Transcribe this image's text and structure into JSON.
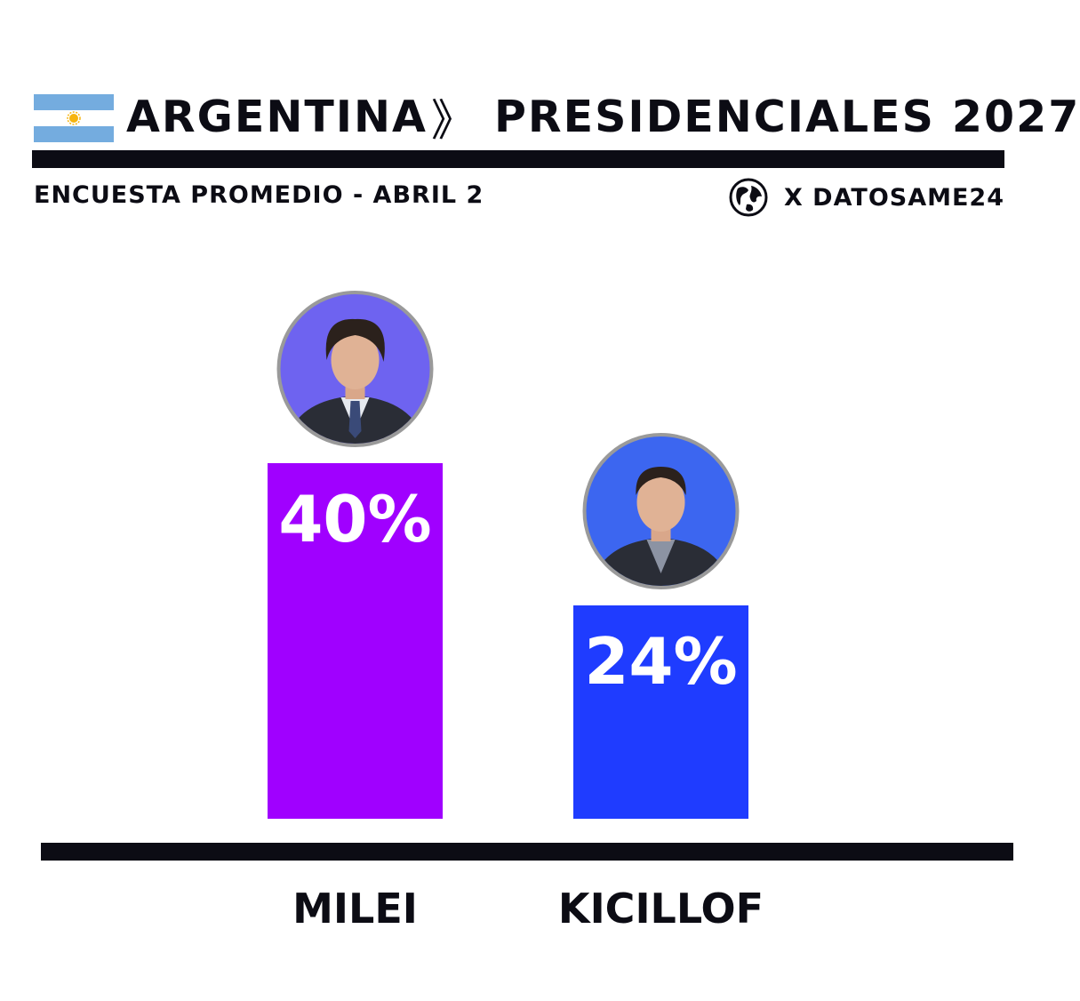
{
  "header": {
    "country": "ARGENTINA",
    "separator": "》",
    "title": "PRESIDENCIALES 2027",
    "subtitle": "ENCUESTA PROMEDIO - ABRIL 2",
    "source": "X DATOSAME24"
  },
  "colors": {
    "ink": "#0c0c14",
    "flag_blue": "#74acdf",
    "flag_sun": "#f6b40e"
  },
  "chart_data": {
    "type": "bar",
    "categories": [
      "MILEI",
      "KICILLOF"
    ],
    "values": [
      40,
      24
    ],
    "value_labels": [
      "40%",
      "24%"
    ],
    "colors": [
      "#a000ff",
      "#1f3cff"
    ],
    "avatar_backgrounds": [
      "#6e63f0",
      "#3c66f0"
    ],
    "title": "PRESIDENCIALES 2027",
    "ylim": [
      0,
      40
    ],
    "grid": false,
    "legend": "none"
  }
}
